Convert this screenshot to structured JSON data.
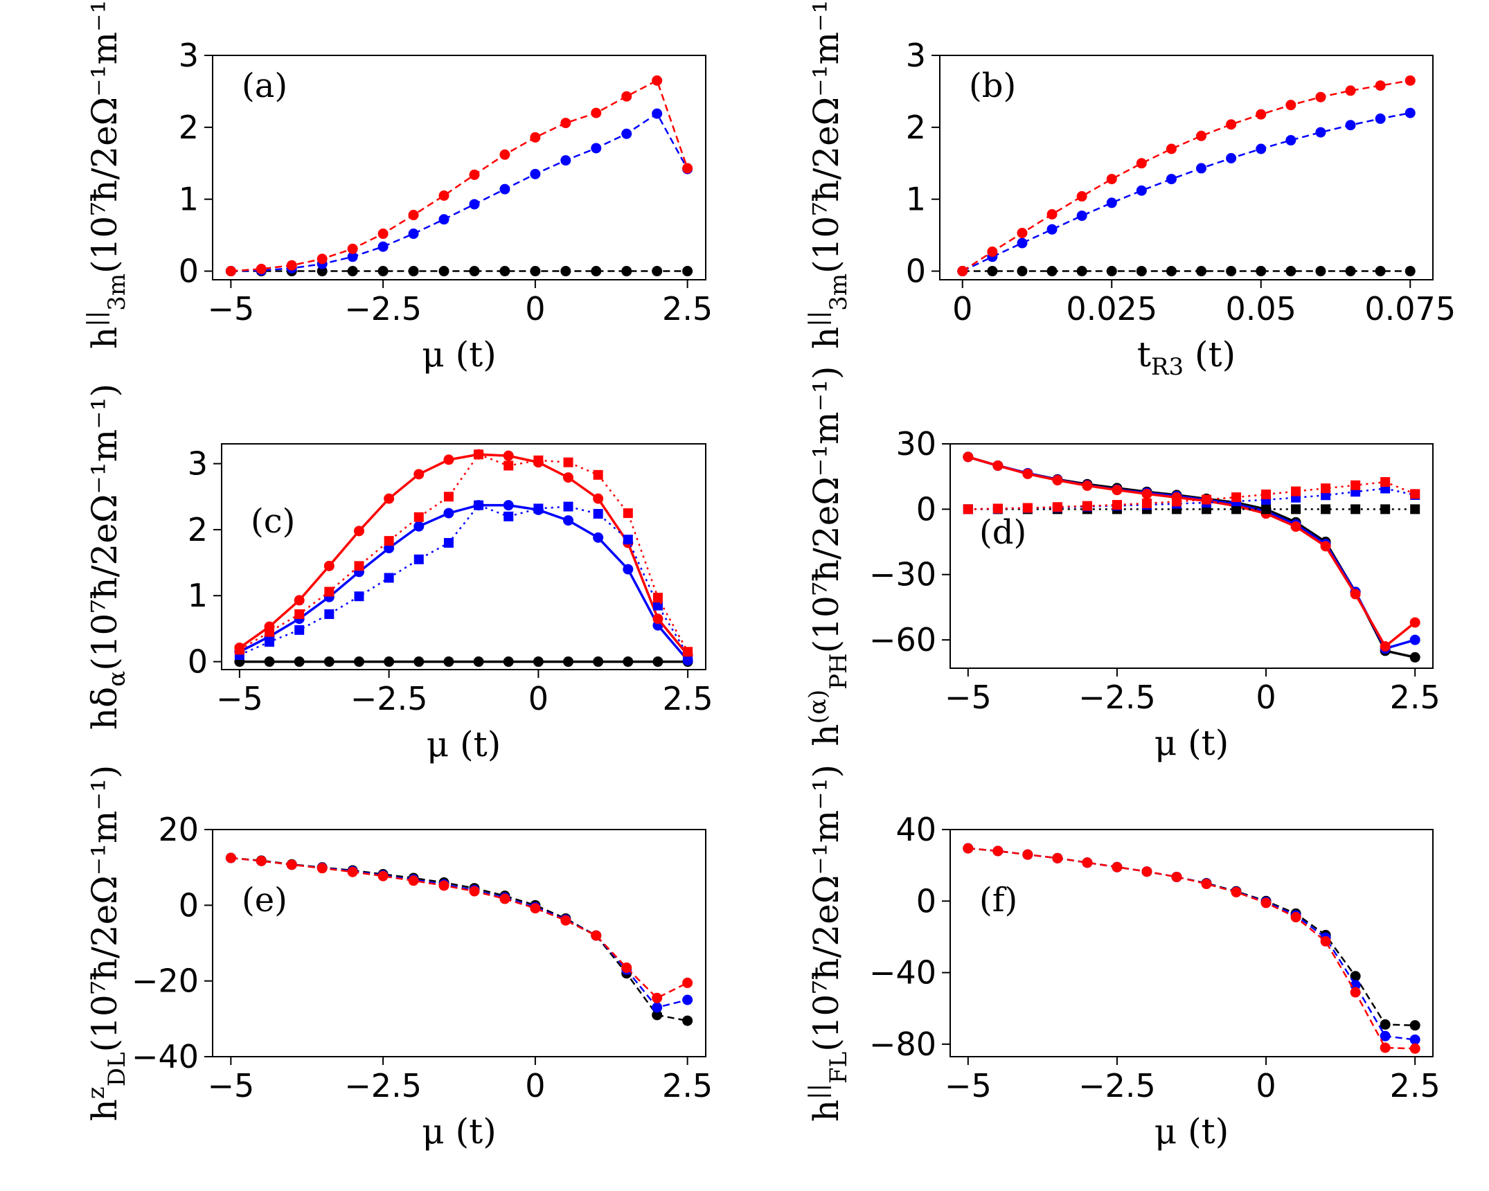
{
  "chart_data": [
    {
      "id": "a",
      "type": "line",
      "panel_label": "(a)",
      "xlabel": "μ (t)",
      "ylabel": "h||3m(10⁷ħ/2eΩ⁻¹m⁻¹)",
      "ylabel_parts": {
        "base": "h",
        "sup": "||",
        "sub": "3m",
        "units": "(10⁷ħ/2eΩ⁻¹m⁻¹)"
      },
      "xlim": [
        -5.3,
        2.8
      ],
      "ylim": [
        -0.12,
        3.0
      ],
      "xticks": [
        -5,
        -2.5,
        0,
        2.5
      ],
      "xtick_labels": [
        "−5",
        "−2.5",
        "0",
        "2.5"
      ],
      "yticks": [
        0,
        1,
        2,
        3
      ],
      "ytick_labels": [
        "0",
        "1",
        "2",
        "3"
      ],
      "x": [
        -5,
        -4.5,
        -4,
        -3.5,
        -3,
        -2.5,
        -2,
        -1.5,
        -1,
        -0.5,
        0,
        0.5,
        1,
        1.5,
        2,
        2.5
      ],
      "series": [
        {
          "name": "black",
          "color": "#000000",
          "style": "dashed",
          "marker": "circle",
          "values": [
            0,
            0,
            0,
            0,
            0,
            0,
            0,
            0,
            0,
            0,
            0,
            0,
            0,
            0,
            0,
            0
          ]
        },
        {
          "name": "blue",
          "color": "#0000ff",
          "style": "dashed",
          "marker": "circle",
          "values": [
            0,
            0.01,
            0.04,
            0.1,
            0.2,
            0.34,
            0.52,
            0.72,
            0.93,
            1.14,
            1.35,
            1.54,
            1.71,
            1.91,
            2.19,
            1.42
          ]
        },
        {
          "name": "red",
          "color": "#ff0000",
          "style": "dashed",
          "marker": "circle",
          "values": [
            0,
            0.03,
            0.08,
            0.17,
            0.31,
            0.52,
            0.78,
            1.05,
            1.34,
            1.62,
            1.86,
            2.06,
            2.2,
            2.43,
            2.65,
            1.43
          ]
        }
      ]
    },
    {
      "id": "b",
      "type": "line",
      "panel_label": "(b)",
      "xlabel": "tR3 (t)",
      "xlabel_parts": {
        "base": "t",
        "sub": "R3",
        "units": " (t)"
      },
      "ylabel": "h||3m(10⁷ħ/2eΩ⁻¹m⁻¹)",
      "ylabel_parts": {
        "base": "h",
        "sup": "||",
        "sub": "3m",
        "units": "(10⁷ħ/2eΩ⁻¹m⁻¹)"
      },
      "xlim": [
        -0.0038,
        0.0788
      ],
      "ylim": [
        -0.12,
        3.0
      ],
      "xticks": [
        0,
        0.025,
        0.05,
        0.075
      ],
      "xtick_labels": [
        "0",
        "0.025",
        "0.05",
        "0.075"
      ],
      "yticks": [
        0,
        1,
        2,
        3
      ],
      "ytick_labels": [
        "0",
        "1",
        "2",
        "3"
      ],
      "x": [
        0,
        0.005,
        0.01,
        0.015,
        0.02,
        0.025,
        0.03,
        0.035,
        0.04,
        0.045,
        0.05,
        0.055,
        0.06,
        0.065,
        0.07,
        0.075
      ],
      "series": [
        {
          "name": "black",
          "color": "#000000",
          "style": "dashed",
          "marker": "circle",
          "values": [
            0,
            0,
            0,
            0,
            0,
            0,
            0,
            0,
            0,
            0,
            0,
            0,
            0,
            0,
            0,
            0
          ]
        },
        {
          "name": "blue",
          "color": "#0000ff",
          "style": "dashed",
          "marker": "circle",
          "values": [
            0,
            0.2,
            0.39,
            0.58,
            0.77,
            0.95,
            1.12,
            1.28,
            1.43,
            1.57,
            1.7,
            1.82,
            1.93,
            2.03,
            2.12,
            2.2
          ]
        },
        {
          "name": "red",
          "color": "#ff0000",
          "style": "dashed",
          "marker": "circle",
          "values": [
            0,
            0.27,
            0.53,
            0.79,
            1.04,
            1.28,
            1.5,
            1.7,
            1.88,
            2.04,
            2.18,
            2.31,
            2.42,
            2.51,
            2.58,
            2.65
          ]
        }
      ]
    },
    {
      "id": "c",
      "type": "line",
      "panel_label": "(c)",
      "xlabel": "μ (t)",
      "ylabel": "hδα(10⁷ħ/2eΩ⁻¹m⁻¹)",
      "ylabel_parts": {
        "base": "hδ",
        "sub": "α",
        "units": "(10⁷ħ/2eΩ⁻¹m⁻¹)"
      },
      "xlim": [
        -5.3,
        2.8
      ],
      "ylim": [
        -0.12,
        3.3
      ],
      "xticks": [
        -5,
        -2.5,
        0,
        2.5
      ],
      "xtick_labels": [
        "−5",
        "−2.5",
        "0",
        "2.5"
      ],
      "yticks": [
        0,
        1,
        2,
        3
      ],
      "ytick_labels": [
        "0",
        "1",
        "2",
        "3"
      ],
      "x": [
        -5,
        -4.5,
        -4,
        -3.5,
        -3,
        -2.5,
        -2,
        -1.5,
        -1,
        -0.5,
        0,
        0.5,
        1,
        1.5,
        2,
        2.5
      ],
      "series": [
        {
          "name": "black",
          "color": "#000000",
          "style": "solid",
          "marker": "circle",
          "values": [
            0,
            0,
            0,
            0,
            0,
            0,
            0,
            0,
            0,
            0,
            0,
            0,
            0,
            0,
            0,
            0
          ]
        },
        {
          "name": "blue solid",
          "color": "#0000ff",
          "style": "solid",
          "marker": "circle",
          "values": [
            0.15,
            0.38,
            0.65,
            0.98,
            1.36,
            1.72,
            2.05,
            2.25,
            2.37,
            2.37,
            2.3,
            2.14,
            1.88,
            1.4,
            0.55,
            0.02
          ]
        },
        {
          "name": "red solid",
          "color": "#ff0000",
          "style": "solid",
          "marker": "circle",
          "values": [
            0.21,
            0.53,
            0.93,
            1.45,
            1.98,
            2.47,
            2.84,
            3.06,
            3.14,
            3.12,
            3.02,
            2.79,
            2.47,
            1.8,
            0.65,
            0.1
          ]
        },
        {
          "name": "blue dotted",
          "color": "#0000ff",
          "style": "dotted",
          "marker": "square",
          "values": [
            0.1,
            0.3,
            0.48,
            0.72,
            0.99,
            1.27,
            1.55,
            1.8,
            2.37,
            2.2,
            2.32,
            2.35,
            2.24,
            1.85,
            0.85,
            0.1
          ]
        },
        {
          "name": "red dotted",
          "color": "#ff0000",
          "style": "dotted",
          "marker": "square",
          "values": [
            0.18,
            0.45,
            0.72,
            1.06,
            1.45,
            1.83,
            2.19,
            2.5,
            3.14,
            2.97,
            3.05,
            3.02,
            2.83,
            2.25,
            0.97,
            0.15
          ]
        }
      ]
    },
    {
      "id": "d",
      "type": "line",
      "panel_label": "(d)",
      "xlabel": "μ (t)",
      "ylabel": "h(α)PH(10⁷ħ/2eΩ⁻¹m⁻¹)",
      "ylabel_parts": {
        "base": "h",
        "sup": "(α)",
        "sub": "PH",
        "units": "(10⁷ħ/2eΩ⁻¹m⁻¹)"
      },
      "xlim": [
        -5.3,
        2.8
      ],
      "ylim": [
        -73,
        30
      ],
      "xticks": [
        -5,
        -2.5,
        0,
        2.5
      ],
      "xtick_labels": [
        "−5",
        "−2.5",
        "0",
        "2.5"
      ],
      "yticks": [
        30,
        0,
        -30,
        -60
      ],
      "ytick_labels": [
        "30",
        "0",
        "−30",
        "−60"
      ],
      "x": [
        -5,
        -4.5,
        -4,
        -3.5,
        -3,
        -2.5,
        -2,
        -1.5,
        -1,
        -0.5,
        0,
        0.5,
        1,
        1.5,
        2,
        2.5
      ],
      "series": [
        {
          "name": "black solid",
          "color": "#000000",
          "style": "solid",
          "marker": "circle",
          "values": [
            24,
            20,
            16.5,
            13.7,
            11.5,
            9.7,
            8,
            6.5,
            4.8,
            3,
            0,
            -6,
            -15,
            -38,
            -65,
            -68
          ]
        },
        {
          "name": "blue solid",
          "color": "#0000ff",
          "style": "solid",
          "marker": "circle",
          "values": [
            24,
            20,
            16.5,
            13.5,
            11,
            9,
            7.5,
            6,
            4.3,
            2.2,
            -1,
            -7,
            -16,
            -38,
            -64,
            -60
          ]
        },
        {
          "name": "red solid",
          "color": "#ff0000",
          "style": "solid",
          "marker": "circle",
          "values": [
            24,
            20,
            16.2,
            13.3,
            10.8,
            8.8,
            7,
            5.4,
            3.8,
            1.5,
            -2,
            -8,
            -17,
            -39,
            -63,
            -52
          ]
        },
        {
          "name": "black dotted",
          "color": "#000000",
          "style": "dotted",
          "marker": "square",
          "values": [
            0,
            0,
            0,
            0,
            0,
            0,
            0,
            0,
            0,
            0,
            0,
            0,
            0,
            0,
            0,
            0
          ]
        },
        {
          "name": "blue dotted",
          "color": "#0000ff",
          "style": "dotted",
          "marker": "square",
          "values": [
            0,
            0.2,
            0.5,
            0.8,
            1.2,
            1.6,
            2,
            2.5,
            3,
            3.6,
            4.3,
            5.3,
            6.4,
            8,
            9.5,
            6.5
          ]
        },
        {
          "name": "red dotted",
          "color": "#ff0000",
          "style": "dotted",
          "marker": "square",
          "values": [
            0,
            0.3,
            0.6,
            1,
            1.5,
            2,
            2.7,
            3.5,
            4.4,
            5.5,
            6.8,
            8.2,
            9.6,
            11,
            12.5,
            7
          ]
        }
      ]
    },
    {
      "id": "e",
      "type": "line",
      "panel_label": "(e)",
      "xlabel": "μ (t)",
      "ylabel": "hzDL(10⁷ħ/2eΩ⁻¹m⁻¹)",
      "ylabel_parts": {
        "base": "h",
        "sup": "z",
        "sub": "DL",
        "units": "(10⁷ħ/2eΩ⁻¹m⁻¹)"
      },
      "xlim": [
        -5.3,
        2.8
      ],
      "ylim": [
        -40,
        20
      ],
      "xticks": [
        -5,
        -2.5,
        0,
        2.5
      ],
      "xtick_labels": [
        "−5",
        "−2.5",
        "0",
        "2.5"
      ],
      "yticks": [
        20,
        0,
        -20,
        -40
      ],
      "ytick_labels": [
        "20",
        "0",
        "−20",
        "−40"
      ],
      "x": [
        -5,
        -4.5,
        -4,
        -3.5,
        -3,
        -2.5,
        -2,
        -1.5,
        -1,
        -0.5,
        0,
        0.5,
        1,
        1.5,
        2,
        2.5
      ],
      "series": [
        {
          "name": "black",
          "color": "#000000",
          "style": "dashed",
          "marker": "circle",
          "values": [
            12.5,
            11.8,
            10.8,
            10,
            9.2,
            8.2,
            7.2,
            6,
            4.5,
            2.5,
            0,
            -3.5,
            -8,
            -18,
            -29,
            -30.5
          ]
        },
        {
          "name": "blue",
          "color": "#0000ff",
          "style": "dashed",
          "marker": "circle",
          "values": [
            12.5,
            11.7,
            10.7,
            9.9,
            9,
            7.9,
            6.8,
            5.5,
            4,
            2,
            -0.5,
            -3.8,
            -8,
            -17,
            -27,
            -25
          ]
        },
        {
          "name": "red",
          "color": "#ff0000",
          "style": "dashed",
          "marker": "circle",
          "values": [
            12.5,
            11.7,
            10.7,
            9.8,
            8.8,
            7.7,
            6.5,
            5.2,
            3.7,
            1.7,
            -0.8,
            -4,
            -8,
            -16.5,
            -24.5,
            -20.5
          ]
        }
      ]
    },
    {
      "id": "f",
      "type": "line",
      "panel_label": "(f)",
      "xlabel": "μ (t)",
      "ylabel": "h||FL(10⁷ħ/2eΩ⁻¹m⁻¹)",
      "ylabel_parts": {
        "base": "h",
        "sup": "||",
        "sub": "FL",
        "units": "(10⁷ħ/2eΩ⁻¹m⁻¹)"
      },
      "xlim": [
        -5.3,
        2.8
      ],
      "ylim": [
        -87,
        40
      ],
      "xticks": [
        -5,
        -2.5,
        0,
        2.5
      ],
      "xtick_labels": [
        "−5",
        "−2.5",
        "0",
        "2.5"
      ],
      "yticks": [
        40,
        0,
        -40,
        -80
      ],
      "ytick_labels": [
        "40",
        "0",
        "−40",
        "−80"
      ],
      "x": [
        -5,
        -4.5,
        -4,
        -3.5,
        -3,
        -2.5,
        -2,
        -1.5,
        -1,
        -0.5,
        0,
        0.5,
        1,
        1.5,
        2,
        2.5
      ],
      "series": [
        {
          "name": "black",
          "color": "#000000",
          "style": "dashed",
          "marker": "circle",
          "values": [
            29.5,
            28,
            26,
            24,
            21.5,
            19,
            16.5,
            13.5,
            10,
            5.5,
            0,
            -7,
            -19,
            -42,
            -69,
            -69.5
          ]
        },
        {
          "name": "blue",
          "color": "#0000ff",
          "style": "dashed",
          "marker": "circle",
          "values": [
            29.5,
            28,
            26,
            24,
            21.5,
            19,
            16.5,
            13.5,
            9.8,
            5.2,
            -0.5,
            -8,
            -20.5,
            -47,
            -75.5,
            -77.5
          ]
        },
        {
          "name": "red",
          "color": "#ff0000",
          "style": "dashed",
          "marker": "circle",
          "values": [
            29.5,
            28,
            26,
            24,
            21.5,
            19,
            16.5,
            13.5,
            9.6,
            5,
            -1,
            -9,
            -22.5,
            -51,
            -82,
            -82.5
          ]
        }
      ]
    }
  ]
}
